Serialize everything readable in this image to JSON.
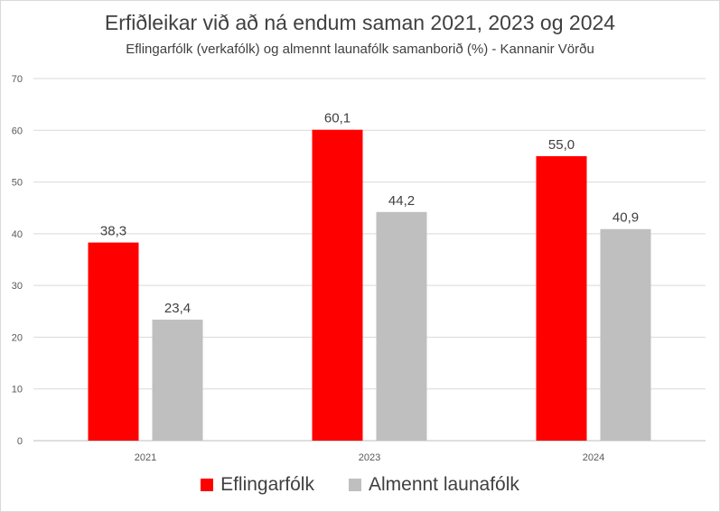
{
  "chart_data": {
    "type": "bar",
    "title": "Erfiðleikar við að ná endum saman 2021, 2023 og 2024",
    "subtitle": "Eflingarfólk (verkafólk) og almennt launafólk samanborið (%) - Kannanir Vörðu",
    "categories": [
      "2021",
      "2023",
      "2024"
    ],
    "series": [
      {
        "name": "Eflingarfólk",
        "values": [
          38.3,
          60.1,
          55.0
        ],
        "labels": [
          "38,3",
          "60,1",
          "55,0"
        ],
        "color": "#ff0000"
      },
      {
        "name": "Almennt launafólk",
        "values": [
          23.4,
          44.2,
          40.9
        ],
        "labels": [
          "23,4",
          "44,2",
          "40,9"
        ],
        "color": "#bfbfbf"
      }
    ],
    "yticks": [
      "0",
      "10",
      "20",
      "30",
      "40",
      "50",
      "60",
      "70"
    ],
    "ylim": [
      0,
      70
    ],
    "grid": true,
    "legend": "bottom",
    "xlabel": "",
    "ylabel": ""
  }
}
